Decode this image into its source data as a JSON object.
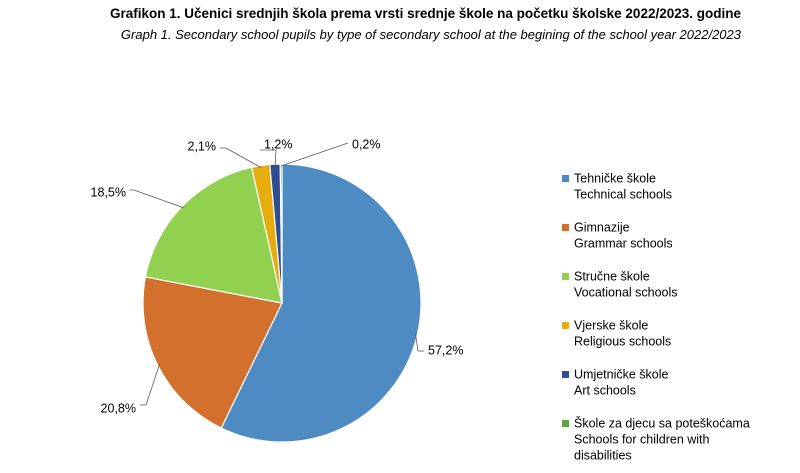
{
  "chart_data": {
    "type": "pie",
    "title": "Grafikon 1.  Učenici srednjih škola prema vrsti srednje škole na početku školske 2022/2023. godine",
    "subtitle": "Graph 1. Secondary school pupils by type of secondary school at the begining of the school year 2022/2023",
    "legend_position": "right",
    "slices": [
      {
        "label": "57,2%",
        "value": 57.2,
        "color": "#4f8bc3",
        "legend": [
          "Tehničke škole",
          "Technical schools"
        ]
      },
      {
        "label": "20,8%",
        "value": 20.8,
        "color": "#d4702d",
        "legend": [
          "Gimnazije",
          "Grammar schools"
        ]
      },
      {
        "label": "18,5%",
        "value": 18.5,
        "color": "#92d050",
        "legend": [
          "Stručne škole",
          "Vocational schools"
        ]
      },
      {
        "label": "2,1%",
        "value": 2.1,
        "color": "#e5ad0d",
        "legend": [
          "Vjerske škole",
          "Religious schools"
        ]
      },
      {
        "label": "1,2%",
        "value": 1.2,
        "color": "#2e4e8f",
        "legend": [
          "Umjetničke škole",
          "Art schools"
        ]
      },
      {
        "label": "0,2%",
        "value": 0.2,
        "color": "#5fa342",
        "legend": [
          "Škole za djecu sa poteškoćama",
          "Schools for children with",
          "disabilities"
        ]
      }
    ]
  }
}
